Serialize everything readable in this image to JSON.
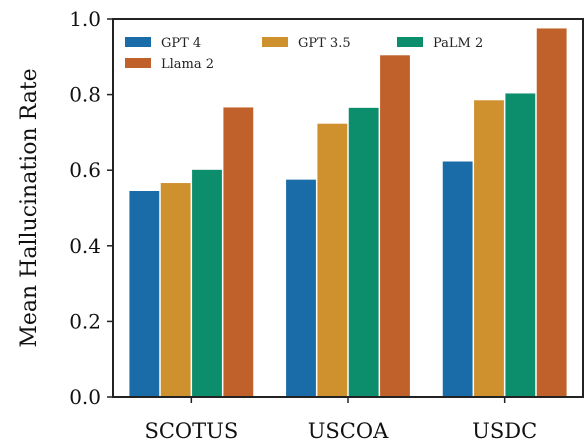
{
  "chart_data": {
    "type": "bar",
    "ylabel": "Mean Hallucination Rate",
    "ylim": [
      0.0,
      1.0
    ],
    "y_ticks": [
      "0.0",
      "0.2",
      "0.4",
      "0.6",
      "0.8",
      "1.0"
    ],
    "categories": [
      "SCOTUS",
      "USCOA",
      "USDC"
    ],
    "series": [
      {
        "name": "GPT 4",
        "color": "#1A6CA8",
        "values": [
          0.545,
          0.575,
          0.623
        ]
      },
      {
        "name": "GPT 3.5",
        "color": "#CF902E",
        "values": [
          0.566,
          0.723,
          0.785
        ]
      },
      {
        "name": "PaLM 2",
        "color": "#0C8D6B",
        "values": [
          0.601,
          0.765,
          0.803
        ]
      },
      {
        "name": "Llama 2",
        "color": "#C0612B",
        "values": [
          0.766,
          0.904,
          0.975
        ]
      }
    ],
    "legend_position": "top-left",
    "grid": false
  }
}
